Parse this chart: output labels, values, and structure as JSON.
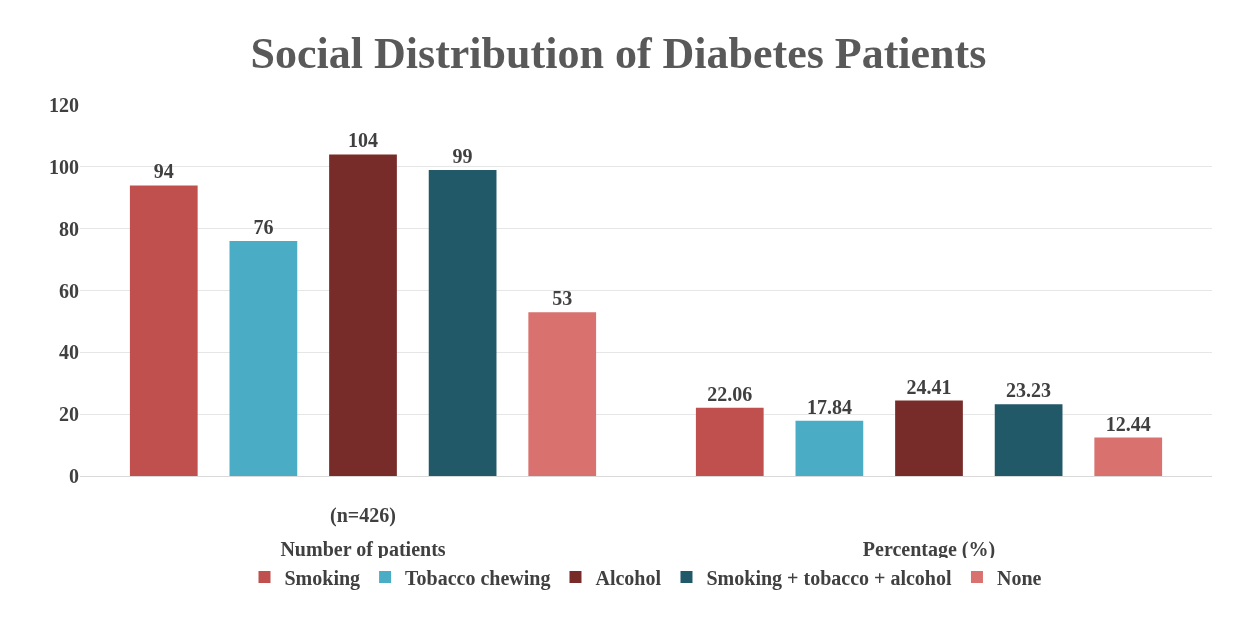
{
  "chart_data": {
    "type": "bar",
    "title": "Social Distribution of Diabetes Patients",
    "categories": [
      "Number of patients",
      "Percentage (%)"
    ],
    "series": [
      {
        "name": "Smoking",
        "color": "#c0504d",
        "values": [
          94,
          22.06
        ]
      },
      {
        "name": "Tobacco chewing",
        "color": "#4bacc6",
        "values": [
          76,
          17.84
        ]
      },
      {
        "name": "Alcohol",
        "color": "#772c2a",
        "values": [
          104,
          24.41
        ]
      },
      {
        "name": "Smoking + tobacco + alcohol",
        "color": "#215968",
        "values": [
          99,
          23.23
        ]
      },
      {
        "name": "None",
        "color": "#d9716e",
        "values": [
          53,
          12.44
        ]
      }
    ],
    "ylim": [
      0,
      120
    ],
    "yticks": [
      0,
      20,
      40,
      60,
      80,
      100,
      120
    ],
    "annotations": [
      "(n=426)"
    ],
    "data_labels": true,
    "grid": "y",
    "legend": "bottom"
  }
}
